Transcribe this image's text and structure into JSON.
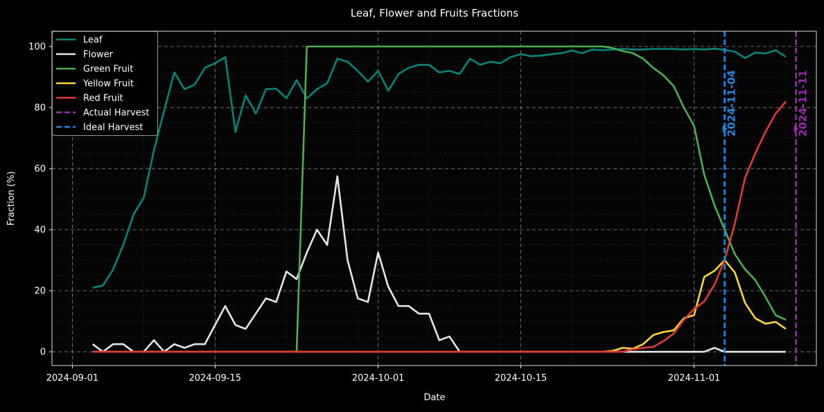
{
  "chart_data": {
    "type": "line",
    "title": "Leaf, Flower and Fruits Fractions",
    "xlabel": "Date",
    "ylabel": "Fraction (%)",
    "xlim": [
      "2024-08-30",
      "2024-11-13"
    ],
    "ylim": [
      -4.5,
      105
    ],
    "x_ticks": [
      "2024-09-01",
      "2024-09-15",
      "2024-10-01",
      "2024-10-15",
      "2024-11-01"
    ],
    "y_ticks": [
      0,
      20,
      40,
      60,
      80,
      100
    ],
    "grid": true,
    "legend_position": "top-left",
    "x_start": "2024-09-03",
    "x_end": "2024-11-10",
    "series": [
      {
        "name": "Leaf",
        "color": "#00877a",
        "style": "solid",
        "values": [
          21,
          21.7,
          27,
          35,
          45,
          50.5,
          66,
          79,
          91.5,
          86,
          87.5,
          93,
          94.5,
          96.5,
          72,
          84,
          78,
          86,
          86.2,
          83,
          89,
          83,
          86,
          88,
          96,
          95,
          92,
          88.5,
          92,
          85.5,
          91,
          93,
          94,
          94,
          91.5,
          92,
          91,
          96,
          94,
          95,
          94.5,
          96.5,
          97.5,
          96.8,
          97,
          97.5,
          97.8,
          98.7,
          97.8,
          99,
          98.8,
          99,
          99.2,
          99,
          99,
          99.2,
          99.2,
          99.2,
          99,
          99.2,
          99,
          99.3,
          98.9,
          98.3,
          96.2,
          98,
          97.7,
          98.8,
          96.6
        ]
      },
      {
        "name": "Flower",
        "color": "#e6e6e6",
        "style": "solid",
        "values": [
          2.5,
          0,
          2.5,
          2.5,
          0,
          0,
          3.8,
          0,
          2.5,
          1.3,
          2.5,
          2.5,
          8.8,
          15,
          8.8,
          7.5,
          12.5,
          17.5,
          16.3,
          26.3,
          23.8,
          32.5,
          40,
          35,
          57.5,
          30,
          17.5,
          16.3,
          32.5,
          21.3,
          15,
          15,
          12.5,
          12.5,
          3.8,
          5,
          0,
          0,
          0,
          0,
          0,
          0,
          0,
          0,
          0,
          0,
          0,
          0,
          0,
          0,
          0,
          0,
          0,
          0,
          0,
          0,
          0,
          0,
          0,
          0,
          0,
          1.3,
          0,
          0,
          0,
          0,
          0,
          0,
          0
        ]
      },
      {
        "name": "Green Fruit",
        "color": "#4caf50",
        "style": "solid",
        "values": [
          0,
          0,
          0,
          0,
          0,
          0,
          0,
          0,
          0,
          0,
          0,
          0,
          0,
          0,
          0,
          0,
          0,
          0,
          0,
          0,
          0,
          100,
          100,
          100,
          100,
          100,
          100,
          100,
          100,
          100,
          100,
          100,
          100,
          100,
          100,
          100,
          100,
          100,
          100,
          100,
          100,
          100,
          100,
          100,
          100,
          100,
          100,
          100,
          100,
          100,
          100,
          99.5,
          98.5,
          97.8,
          96,
          93,
          90.5,
          87,
          80,
          74,
          58,
          48,
          40,
          32,
          27,
          23.5,
          18,
          12,
          10.5
        ]
      },
      {
        "name": "Yellow Fruit",
        "color": "#fdd835",
        "style": "solid",
        "values": [
          0,
          0,
          0,
          0,
          0,
          0,
          0,
          0,
          0,
          0,
          0,
          0,
          0,
          0,
          0,
          0,
          0,
          0,
          0,
          0,
          0,
          0,
          0,
          0,
          0,
          0,
          0,
          0,
          0,
          0,
          0,
          0,
          0,
          0,
          0,
          0,
          0,
          0,
          0,
          0,
          0,
          0,
          0,
          0,
          0,
          0,
          0,
          0,
          0,
          0,
          0,
          0.3,
          1.3,
          1,
          2.5,
          5.5,
          6.5,
          7,
          11,
          12,
          24.5,
          26.5,
          30,
          26,
          16,
          11,
          9.2,
          9.8,
          7.5
        ]
      },
      {
        "name": "Red Fruit",
        "color": "#e53935",
        "style": "solid",
        "values": [
          0,
          0,
          0,
          0,
          0,
          0,
          0,
          0,
          0,
          0,
          0,
          0,
          0,
          0,
          0,
          0,
          0,
          0,
          0,
          0,
          0,
          0,
          0,
          0,
          0,
          0,
          0,
          0,
          0,
          0,
          0,
          0,
          0,
          0,
          0,
          0,
          0,
          0,
          0,
          0,
          0,
          0,
          0,
          0,
          0,
          0,
          0,
          0,
          0,
          0,
          0,
          0,
          0,
          0.8,
          1.3,
          1.6,
          3.5,
          6,
          10.5,
          14,
          16.5,
          22,
          30,
          42,
          57,
          65,
          72,
          78,
          82
        ]
      }
    ],
    "vlines": [
      {
        "name": "Actual Harvest",
        "date": "2024-11-11",
        "label": "2024-11-11",
        "color": "#9c27b0"
      },
      {
        "name": "Ideal Harvest",
        "date": "2024-11-04",
        "label": "2024-11-04",
        "color": "#1e88e5"
      }
    ]
  }
}
